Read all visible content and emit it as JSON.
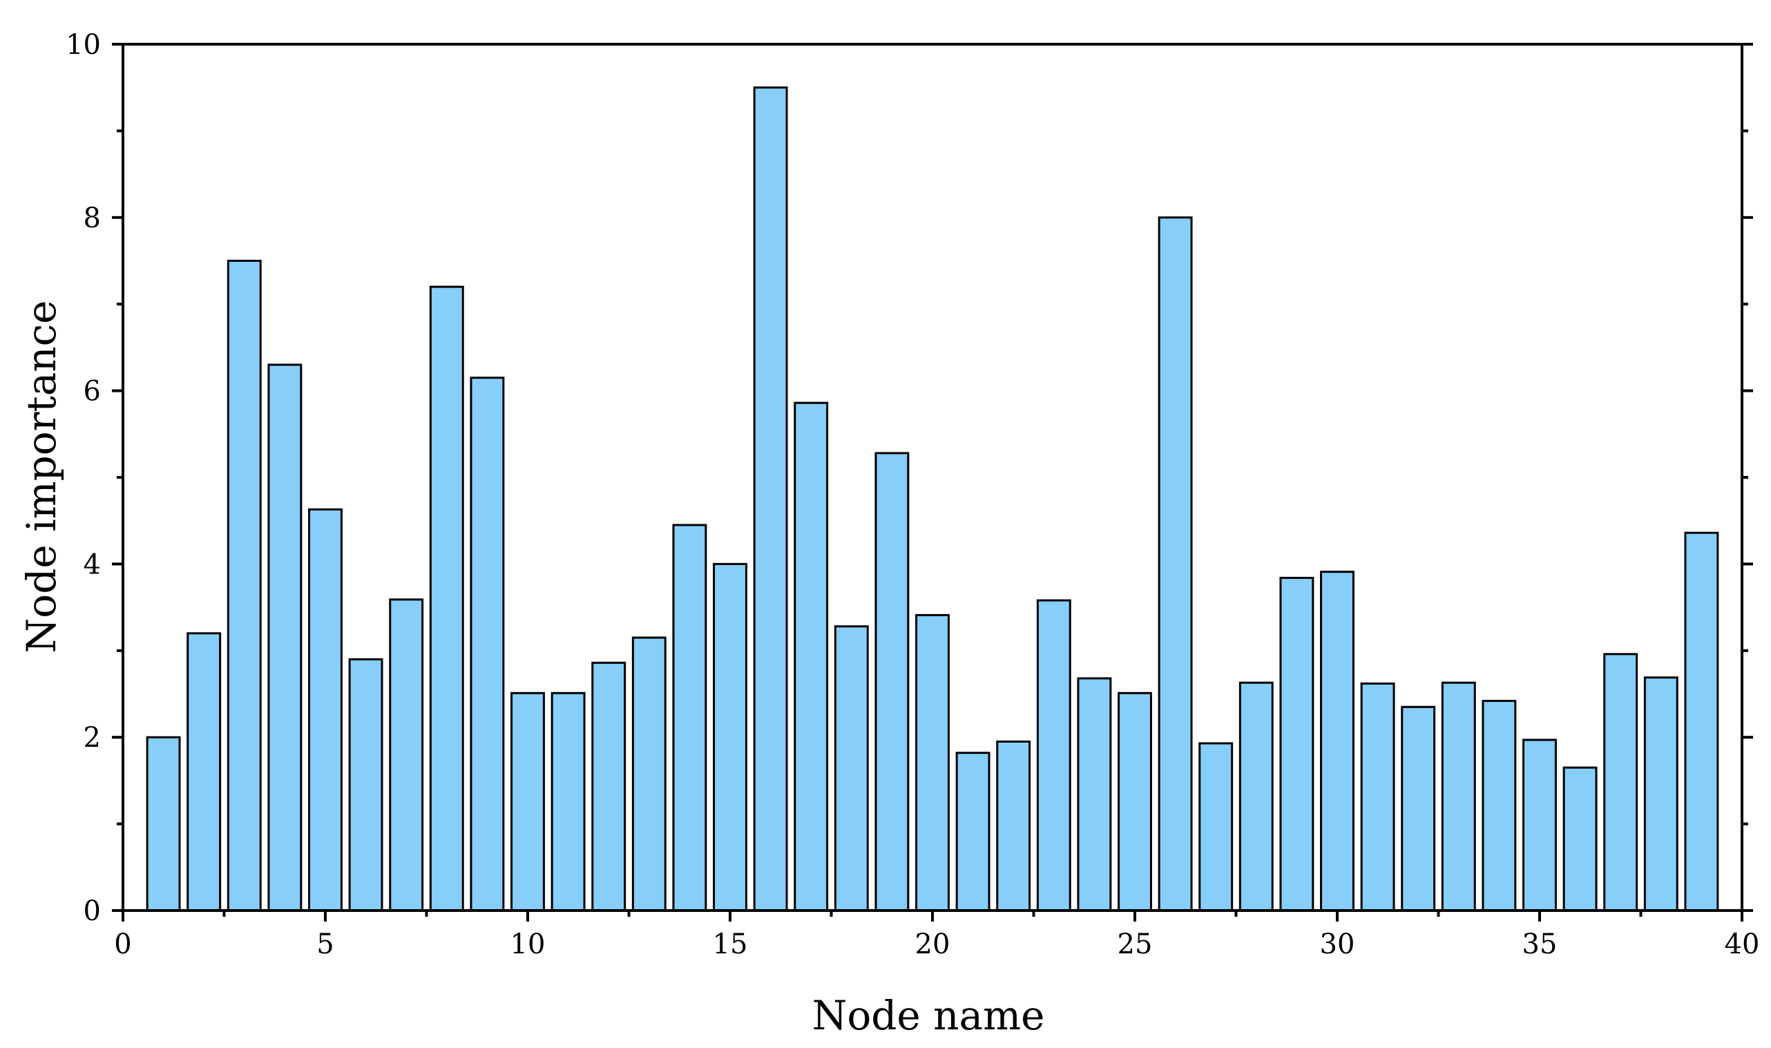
{
  "chart_data": {
    "type": "bar",
    "xlabel": "Node name",
    "ylabel": "Node importance",
    "xlim": [
      0,
      40
    ],
    "ylim": [
      0,
      10
    ],
    "x_ticks": [
      0,
      5,
      10,
      15,
      20,
      25,
      30,
      35,
      40
    ],
    "y_ticks": [
      0,
      2,
      4,
      6,
      8,
      10
    ],
    "bar_color": "#87CEFA",
    "edge_color": "#000000",
    "grid": false,
    "categories": [
      1,
      2,
      3,
      4,
      5,
      6,
      7,
      8,
      9,
      10,
      11,
      12,
      13,
      14,
      15,
      16,
      17,
      18,
      19,
      20,
      21,
      22,
      23,
      24,
      25,
      26,
      27,
      28,
      29,
      30,
      31,
      32,
      33,
      34,
      35,
      36,
      37,
      38,
      39
    ],
    "values": [
      2.0,
      3.2,
      7.5,
      6.3,
      4.63,
      2.9,
      3.59,
      7.2,
      6.15,
      2.51,
      2.51,
      2.86,
      3.15,
      4.45,
      4.0,
      9.5,
      5.86,
      3.28,
      5.28,
      3.41,
      1.82,
      1.95,
      3.58,
      2.68,
      2.51,
      8.0,
      1.93,
      2.63,
      3.84,
      3.91,
      2.62,
      2.35,
      2.63,
      2.42,
      1.97,
      1.65,
      2.96,
      2.69,
      4.36
    ]
  }
}
